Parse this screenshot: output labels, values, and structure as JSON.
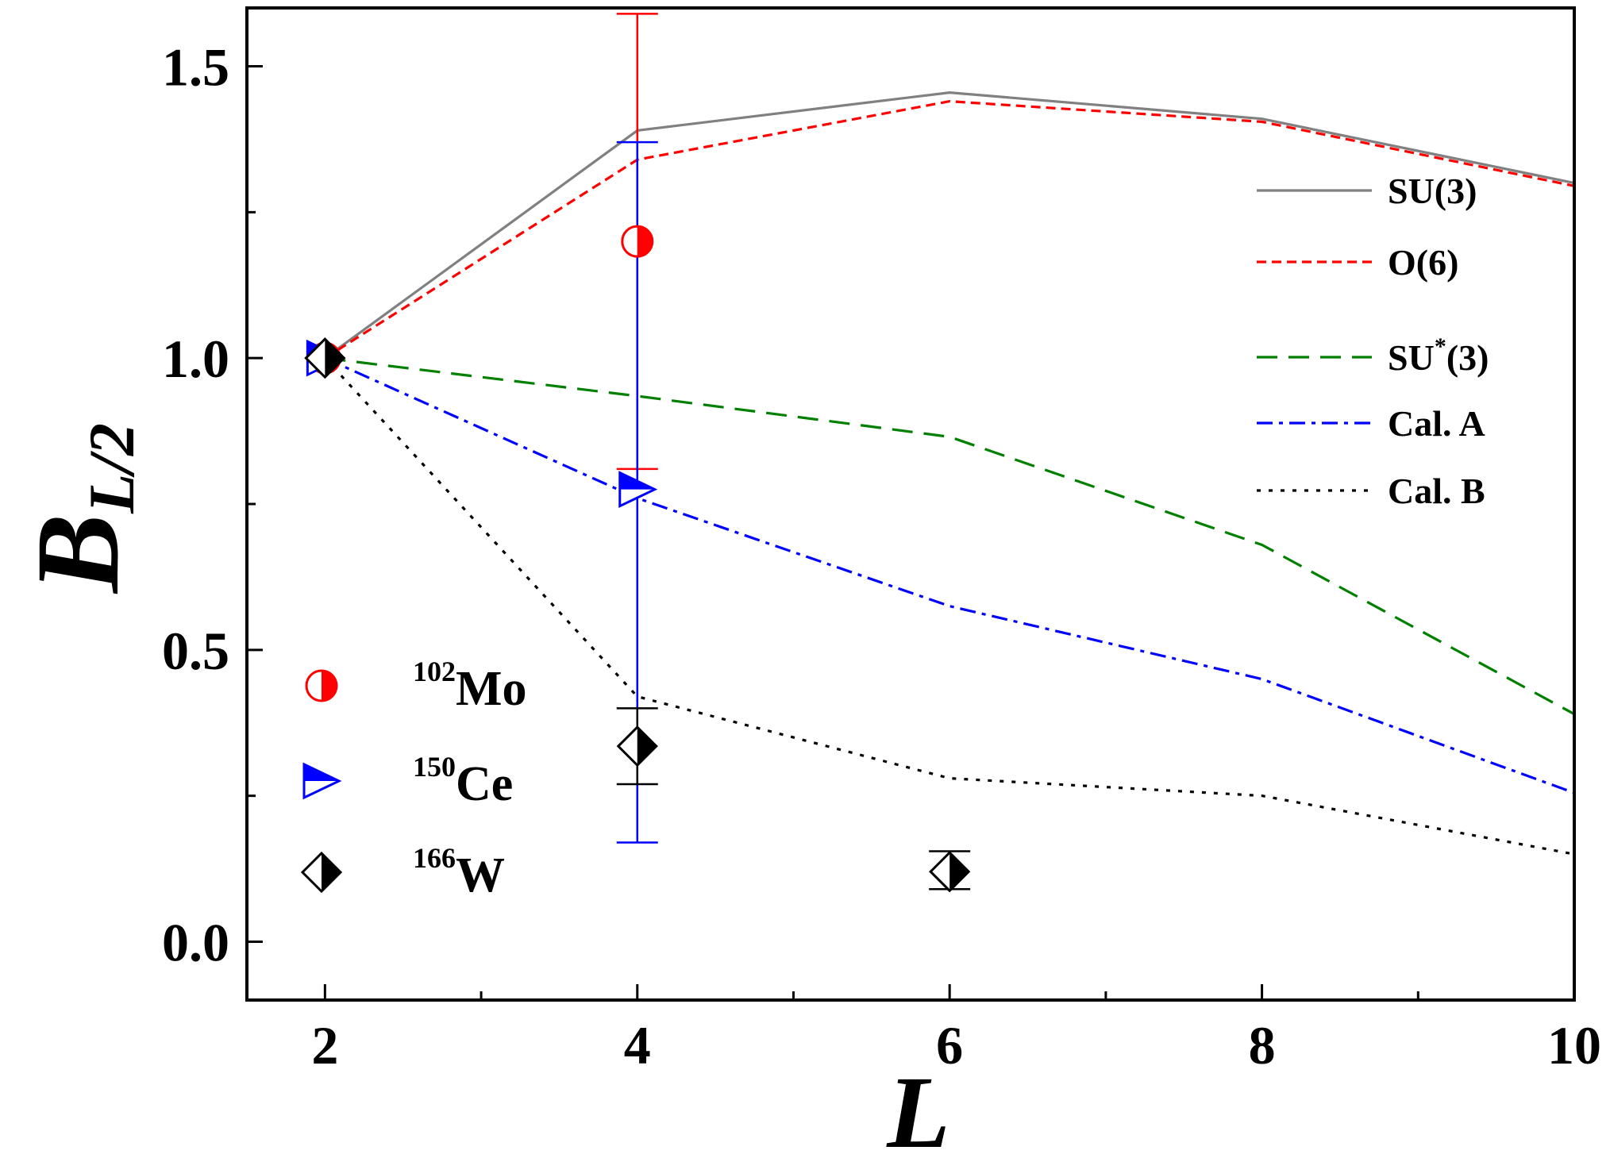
{
  "chart_data": {
    "type": "line",
    "xlabel": "L",
    "ylabel_main": "B",
    "ylabel_sub": "L/2",
    "xlim": [
      1.5,
      10
    ],
    "ylim": [
      -0.1,
      1.6
    ],
    "x_ticks": [
      2,
      4,
      6,
      8,
      10
    ],
    "x_minor_ticks": [
      3,
      5,
      7,
      9
    ],
    "y_ticks": [
      "0.0",
      "0.5",
      "1.0",
      "1.5"
    ],
    "y_tick_values": [
      0.0,
      0.5,
      1.0,
      1.5
    ],
    "y_minor_ticks": [
      0.25,
      0.75,
      1.25
    ],
    "grid": false,
    "series": [
      {
        "name": "SU(3)",
        "name_base": "SU(3)",
        "name_sup": "",
        "name_rest": "",
        "color": "#808080",
        "dash": "solid",
        "x": [
          2,
          4,
          6,
          8,
          10
        ],
        "y": [
          1.0,
          1.39,
          1.455,
          1.41,
          1.3
        ]
      },
      {
        "name": "O(6)",
        "name_base": "O(6)",
        "name_sup": "",
        "name_rest": "",
        "color": "#ff0000",
        "dash": "short-dash",
        "x": [
          2,
          4,
          6,
          8,
          10
        ],
        "y": [
          1.0,
          1.34,
          1.44,
          1.405,
          1.295
        ]
      },
      {
        "name": "SU*(3)",
        "name_base": "SU",
        "name_sup": "*",
        "name_rest": "(3)",
        "color": "#008000",
        "dash": "dash",
        "x": [
          2,
          4,
          6,
          8,
          10
        ],
        "y": [
          1.0,
          0.935,
          0.865,
          0.68,
          0.39
        ]
      },
      {
        "name": "Cal. A",
        "name_base": "Cal. A",
        "name_sup": "",
        "name_rest": "",
        "color": "#0000ff",
        "dash": "dash-dot",
        "x": [
          2,
          4,
          6,
          8,
          10
        ],
        "y": [
          1.0,
          0.76,
          0.575,
          0.45,
          0.255
        ]
      },
      {
        "name": "Cal. B",
        "name_base": "Cal. B",
        "name_sup": "",
        "name_rest": "",
        "color": "#000000",
        "dash": "dot",
        "x": [
          2,
          4,
          6,
          8,
          10
        ],
        "y": [
          1.0,
          0.42,
          0.28,
          0.25,
          0.15
        ]
      }
    ],
    "experimental": [
      {
        "name": "102Mo",
        "mass": "102",
        "element": "Mo",
        "color": "#ff0000",
        "marker": "half-circle",
        "points": [
          {
            "x": 2,
            "y": 1.0,
            "err_low": null,
            "err_high": null
          },
          {
            "x": 4,
            "y": 1.2,
            "err_low": 0.81,
            "err_high": 1.59
          }
        ]
      },
      {
        "name": "150Ce",
        "mass": "150",
        "element": "Ce",
        "color": "#0000ff",
        "marker": "half-triangle",
        "points": [
          {
            "x": 2,
            "y": 1.0,
            "err_low": null,
            "err_high": null
          },
          {
            "x": 4,
            "y": 0.775,
            "err_low": 0.17,
            "err_high": 1.37
          }
        ]
      },
      {
        "name": "166W",
        "mass": "166",
        "element": "W",
        "color": "#000000",
        "marker": "half-diamond",
        "points": [
          {
            "x": 2,
            "y": 1.0,
            "err_low": null,
            "err_high": null
          },
          {
            "x": 4,
            "y": 0.335,
            "err_low": 0.27,
            "err_high": 0.4
          },
          {
            "x": 6,
            "y": 0.12,
            "err_low": 0.09,
            "err_high": 0.155
          }
        ]
      }
    ]
  }
}
